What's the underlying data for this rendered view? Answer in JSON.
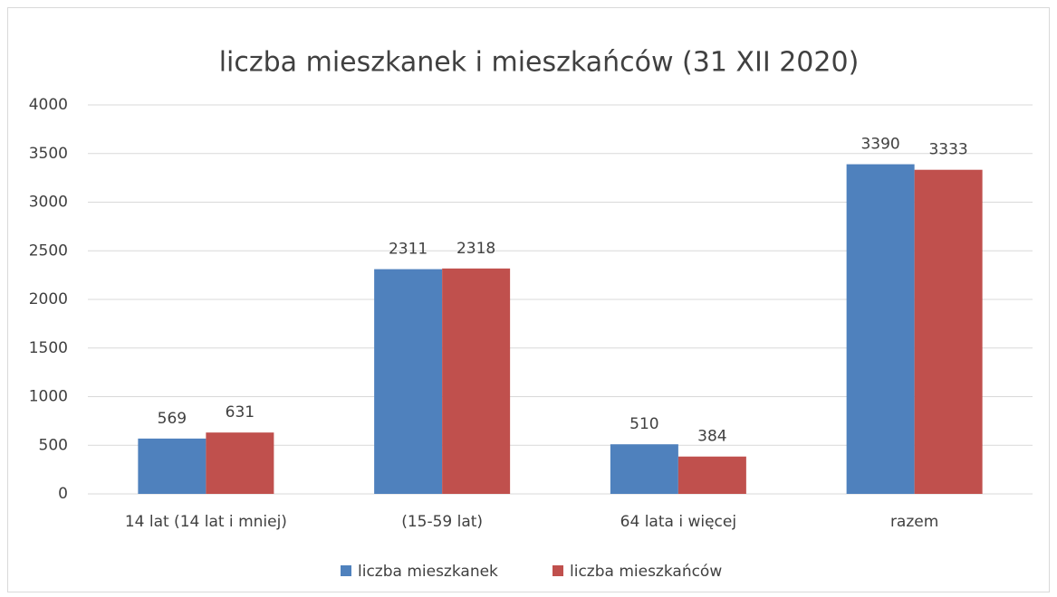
{
  "chart_data": {
    "type": "bar",
    "title": "liczba mieszkanek i mieszkańców (31 XII 2020)",
    "categories": [
      "14 lat (14 lat i mniej)",
      "(15-59 lat)",
      "64 lata i więcej",
      "razem"
    ],
    "series": [
      {
        "name": "liczba mieszkanek",
        "color": "#4f81bd",
        "values": [
          569,
          2311,
          510,
          3390
        ]
      },
      {
        "name": "liczba mieszkańców",
        "color": "#c0504d",
        "values": [
          631,
          2318,
          384,
          3333
        ]
      }
    ],
    "ylim": [
      0,
      4000
    ],
    "yticks": [
      0,
      500,
      1000,
      1500,
      2000,
      2500,
      3000,
      3500,
      4000
    ],
    "grid": true,
    "legend": "bottom"
  }
}
